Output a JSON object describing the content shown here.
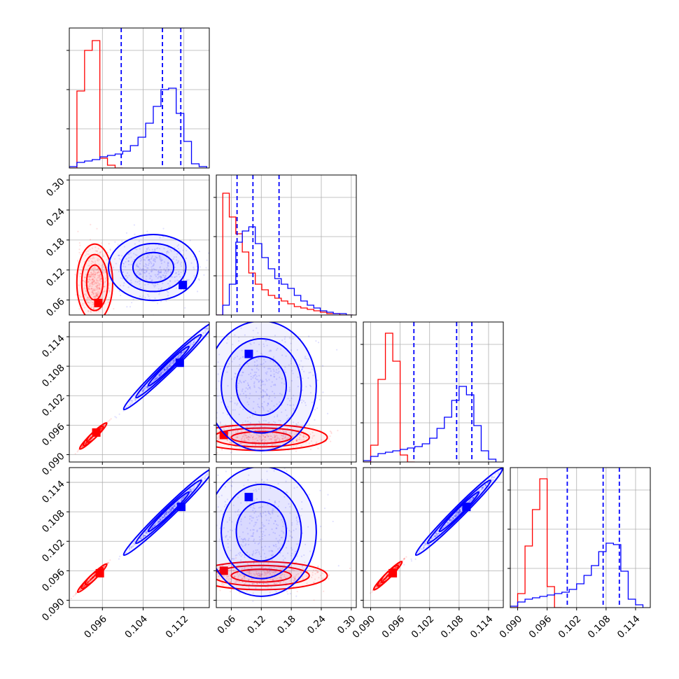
{
  "chart_data": [
    {
      "type": "histogram",
      "panel": "p00",
      "x_ticks": [
        0.096,
        0.104,
        0.112
      ],
      "xlim": [
        0.0895,
        0.117
      ],
      "series": [
        {
          "color": "#ff0000",
          "edges": [
            0.0895,
            0.091,
            0.0925,
            0.094,
            0.0955,
            0.097,
            0.0985,
            0.1
          ],
          "values": [
            0.0,
            0.55,
            0.84,
            0.91,
            0.07,
            0.02,
            0.0
          ]
        },
        {
          "color": "#0000ff",
          "edges": [
            0.0895,
            0.091,
            0.0925,
            0.094,
            0.0955,
            0.097,
            0.0985,
            0.1,
            0.1015,
            0.103,
            0.1045,
            0.106,
            0.1075,
            0.109,
            0.1105,
            0.112,
            0.1135,
            0.115,
            0.1165
          ],
          "values": [
            0.01,
            0.04,
            0.05,
            0.06,
            0.08,
            0.09,
            0.1,
            0.12,
            0.16,
            0.22,
            0.32,
            0.44,
            0.56,
            0.57,
            0.39,
            0.19,
            0.03,
            0.01
          ]
        }
      ],
      "quantiles": [
        0.0997,
        0.1078,
        0.1114
      ]
    },
    {
      "type": "histogram",
      "panel": "p11",
      "x_ticks": [
        0.06,
        0.12,
        0.18,
        0.24,
        0.3
      ],
      "xlim": [
        0.03,
        0.31
      ],
      "series": [
        {
          "color": "#ff0000",
          "edges": [
            0.03,
            0.043,
            0.056,
            0.069,
            0.082,
            0.095,
            0.108,
            0.121,
            0.134,
            0.147,
            0.16,
            0.173,
            0.186,
            0.199,
            0.212,
            0.225,
            0.238,
            0.251,
            0.264,
            0.277,
            0.29,
            0.303
          ],
          "values": [
            0.0,
            0.87,
            0.7,
            0.58,
            0.45,
            0.3,
            0.22,
            0.18,
            0.14,
            0.12,
            0.1,
            0.08,
            0.06,
            0.05,
            0.04,
            0.03,
            0.02,
            0.01,
            0.01,
            0.0,
            0.0
          ]
        },
        {
          "color": "#0000ff",
          "edges": [
            0.03,
            0.043,
            0.056,
            0.069,
            0.082,
            0.095,
            0.108,
            0.121,
            0.134,
            0.147,
            0.16,
            0.173,
            0.186,
            0.199,
            0.212,
            0.225,
            0.238,
            0.251,
            0.264,
            0.277,
            0.29,
            0.303
          ],
          "values": [
            0.0,
            0.07,
            0.22,
            0.52,
            0.6,
            0.63,
            0.51,
            0.41,
            0.33,
            0.26,
            0.22,
            0.19,
            0.14,
            0.1,
            0.07,
            0.05,
            0.03,
            0.02,
            0.01,
            0.01,
            0.0
          ]
        }
      ],
      "quantiles": [
        0.0715,
        0.1033,
        0.1555
      ]
    },
    {
      "type": "histogram",
      "panel": "p22",
      "x_ticks": [
        0.09,
        0.096,
        0.102,
        0.108,
        0.114
      ],
      "xlim": [
        0.0885,
        0.117
      ],
      "series": [
        {
          "color": "#ff0000",
          "edges": [
            0.0885,
            0.09,
            0.0915,
            0.093,
            0.0945,
            0.096,
            0.0975,
            0.099
          ],
          "values": [
            0.0,
            0.12,
            0.59,
            0.92,
            0.72,
            0.05,
            0.0
          ]
        },
        {
          "color": "#0000ff",
          "edges": [
            0.0885,
            0.09,
            0.0915,
            0.093,
            0.0945,
            0.096,
            0.0975,
            0.099,
            0.1005,
            0.102,
            0.1035,
            0.105,
            0.1065,
            0.108,
            0.1095,
            0.111,
            0.1125,
            0.114,
            0.1155
          ],
          "values": [
            0.01,
            0.04,
            0.06,
            0.07,
            0.08,
            0.09,
            0.1,
            0.11,
            0.13,
            0.17,
            0.24,
            0.32,
            0.44,
            0.54,
            0.48,
            0.26,
            0.08,
            0.02
          ]
        }
      ],
      "quantiles": [
        0.0988,
        0.1075,
        0.1106
      ]
    },
    {
      "type": "histogram",
      "panel": "p33",
      "x_ticks": [
        0.09,
        0.096,
        0.102,
        0.108,
        0.114
      ],
      "xlim": [
        0.0885,
        0.117
      ],
      "series": [
        {
          "color": "#ff0000",
          "edges": [
            0.0885,
            0.09,
            0.0915,
            0.093,
            0.0945,
            0.096,
            0.0975,
            0.099
          ],
          "values": [
            0.0,
            0.1,
            0.44,
            0.7,
            0.92,
            0.15,
            0.0
          ]
        },
        {
          "color": "#0000ff",
          "edges": [
            0.0885,
            0.09,
            0.0915,
            0.093,
            0.0945,
            0.096,
            0.0975,
            0.099,
            0.1005,
            0.102,
            0.1035,
            0.105,
            0.1065,
            0.108,
            0.1095,
            0.111,
            0.1125,
            0.114,
            0.1155
          ],
          "values": [
            0.01,
            0.04,
            0.06,
            0.07,
            0.08,
            0.09,
            0.1,
            0.11,
            0.13,
            0.17,
            0.23,
            0.3,
            0.4,
            0.46,
            0.45,
            0.26,
            0.06,
            0.02
          ]
        }
      ],
      "quantiles": [
        0.1001,
        0.1074,
        0.1107
      ]
    },
    {
      "type": "scatter",
      "panel": "p10",
      "x_ticks": [
        0.096,
        0.104,
        0.112
      ],
      "y_ticks": [
        0.06,
        0.12,
        0.18,
        0.24,
        0.3
      ],
      "xlim": [
        0.0895,
        0.117
      ],
      "ylim": [
        0.03,
        0.31
      ],
      "series": [
        {
          "color": "#ff0000",
          "center": [
            0.0945,
            0.095
          ],
          "spread": [
            0.0016,
            0.035
          ],
          "peak": [
            0.0952,
            0.054
          ]
        },
        {
          "color": "#0000ff",
          "center": [
            0.106,
            0.125
          ],
          "spread": [
            0.004,
            0.03
          ],
          "peak": [
            0.1118,
            0.09
          ]
        }
      ]
    },
    {
      "type": "scatter",
      "panel": "p20",
      "x_ticks": [
        0.096,
        0.104,
        0.112
      ],
      "y_ticks": [
        0.09,
        0.096,
        0.102,
        0.108,
        0.114
      ],
      "xlim": [
        0.0895,
        0.117
      ],
      "ylim": [
        0.0885,
        0.117
      ],
      "series": [
        {
          "color": "#ff0000",
          "center": [
            0.0942,
            0.0938
          ],
          "spread": [
            0.0012,
            0.0012
          ],
          "peak": [
            0.0948,
            0.0945
          ]
        },
        {
          "color": "#0000ff",
          "center": [
            0.109,
            0.108
          ],
          "spread": [
            0.004,
            0.004
          ],
          "peak": [
            0.1112,
            0.1087
          ]
        }
      ]
    },
    {
      "type": "scatter",
      "panel": "p21",
      "x_ticks": [
        0.06,
        0.12,
        0.18,
        0.24,
        0.3
      ],
      "y_ticks": [
        0.09,
        0.096,
        0.102,
        0.108,
        0.114
      ],
      "xlim": [
        0.03,
        0.31
      ],
      "ylim": [
        0.0885,
        0.117
      ],
      "series": [
        {
          "color": "#ff0000",
          "center": [
            0.12,
            0.0935
          ],
          "spread": [
            0.06,
            0.0012
          ],
          "peak": [
            0.045,
            0.094
          ]
        },
        {
          "color": "#0000ff",
          "center": [
            0.12,
            0.104
          ],
          "spread": [
            0.05,
            0.006
          ],
          "peak": [
            0.095,
            0.1105
          ]
        }
      ]
    },
    {
      "type": "scatter",
      "panel": "p30",
      "x_ticks": [
        0.096,
        0.104,
        0.112
      ],
      "y_ticks": [
        0.09,
        0.096,
        0.102,
        0.108,
        0.114
      ],
      "xlim": [
        0.0895,
        0.117
      ],
      "ylim": [
        0.0885,
        0.117
      ],
      "series": [
        {
          "color": "#ff0000",
          "center": [
            0.094,
            0.0945
          ],
          "spread": [
            0.0013,
            0.0013
          ],
          "peak": [
            0.0955,
            0.0955
          ]
        },
        {
          "color": "#0000ff",
          "center": [
            0.109,
            0.108
          ],
          "spread": [
            0.004,
            0.004
          ],
          "peak": [
            0.1115,
            0.109
          ]
        }
      ]
    },
    {
      "type": "scatter",
      "panel": "p31",
      "x_ticks": [
        0.06,
        0.12,
        0.18,
        0.24,
        0.3
      ],
      "y_ticks": [
        0.09,
        0.096,
        0.102,
        0.108,
        0.114
      ],
      "xlim": [
        0.03,
        0.31
      ],
      "ylim": [
        0.0885,
        0.117
      ],
      "series": [
        {
          "color": "#ff0000",
          "center": [
            0.12,
            0.095
          ],
          "spread": [
            0.06,
            0.0013
          ],
          "peak": [
            0.045,
            0.096
          ]
        },
        {
          "color": "#0000ff",
          "center": [
            0.12,
            0.104
          ],
          "spread": [
            0.05,
            0.006
          ],
          "peak": [
            0.095,
            0.111
          ]
        }
      ]
    },
    {
      "type": "scatter",
      "panel": "p32",
      "x_ticks": [
        0.09,
        0.096,
        0.102,
        0.108,
        0.114
      ],
      "y_ticks": [
        0.09,
        0.096,
        0.102,
        0.108,
        0.114
      ],
      "xlim": [
        0.0885,
        0.117
      ],
      "ylim": [
        0.0885,
        0.117
      ],
      "series": [
        {
          "color": "#ff0000",
          "center": [
            0.0935,
            0.095
          ],
          "spread": [
            0.0013,
            0.0013
          ],
          "peak": [
            0.0945,
            0.0955
          ]
        },
        {
          "color": "#0000ff",
          "center": [
            0.108,
            0.108
          ],
          "spread": [
            0.004,
            0.004
          ],
          "peak": [
            0.1095,
            0.109
          ]
        }
      ]
    }
  ],
  "tick_labels": {
    "p10_y": [
      "0.06",
      "0.12",
      "0.18",
      "0.24",
      "0.30"
    ],
    "p20_y": [
      "0.090",
      "0.096",
      "0.102",
      "0.108",
      "0.114"
    ],
    "p30_y": [
      "0.090",
      "0.096",
      "0.102",
      "0.108",
      "0.114"
    ],
    "p30_x": [
      "0.096",
      "0.104",
      "0.112"
    ],
    "p31_x": [
      "0.06",
      "0.12",
      "0.18",
      "0.24",
      "0.30"
    ],
    "p32_x": [
      "0.090",
      "0.096",
      "0.102",
      "0.108",
      "0.114"
    ],
    "p33_x": [
      "0.090",
      "0.096",
      "0.102",
      "0.108",
      "0.114"
    ]
  }
}
